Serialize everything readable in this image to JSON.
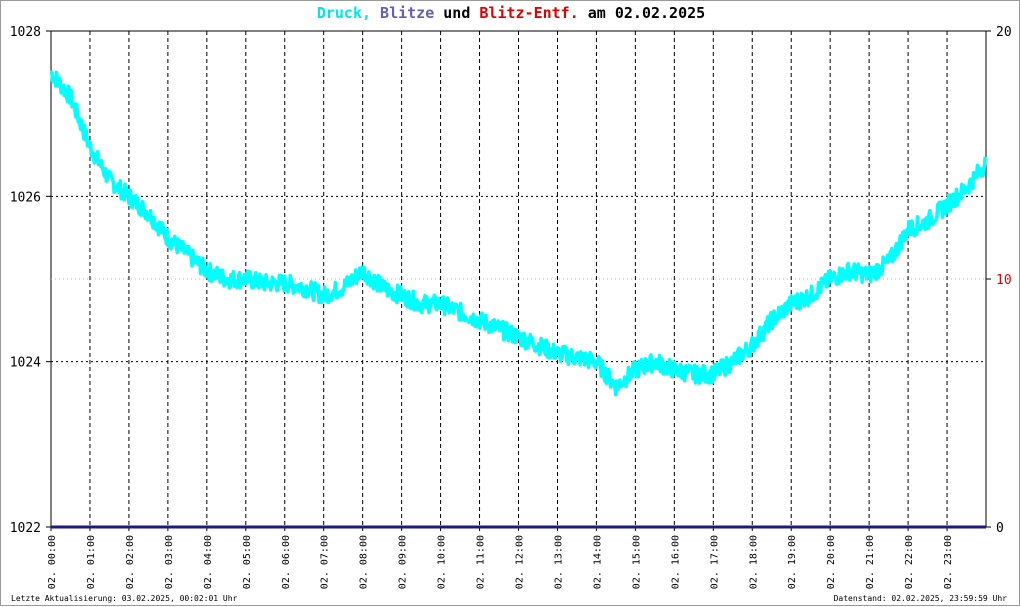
{
  "title": {
    "part1": "Druck,",
    "part2": "Blitze",
    "part3": "und",
    "part4": "Blitz-Entf.",
    "part5": "am 02.02.2025",
    "color1": "#00e5e5",
    "color2": "#6060c0",
    "color3": "#000000",
    "color4": "#e00000",
    "color5": "#000000"
  },
  "footer": {
    "left": "Letzte Aktualisierung: 03.02.2025, 00:02:01 Uhr",
    "right": "Datenstand: 02.02.2025, 23:59:59 Uhr"
  },
  "chart_data": {
    "type": "line",
    "title": "Druck, Blitze und Blitz-Entf. am 02.02.2025",
    "x_labels": [
      "02. 00:00",
      "02. 01:00",
      "02. 02:00",
      "02. 03:00",
      "02. 04:00",
      "02. 05:00",
      "02. 06:00",
      "02. 07:00",
      "02. 08:00",
      "02. 09:00",
      "02. 10:00",
      "02. 11:00",
      "02. 12:00",
      "02. 13:00",
      "02. 14:00",
      "02. 15:00",
      "02. 16:00",
      "02. 17:00",
      "02. 18:00",
      "02. 19:00",
      "02. 20:00",
      "02. 21:00",
      "02. 22:00",
      "02. 23:00"
    ],
    "y_left": {
      "ticks": [
        1022,
        1024,
        1026,
        1028
      ],
      "range": [
        1022,
        1028
      ]
    },
    "y_right": {
      "ticks": [
        0,
        10,
        20
      ],
      "range": [
        0,
        20
      ],
      "tick_color_10": "#e00000"
    },
    "grid": true,
    "series": [
      {
        "name": "Druck",
        "axis": "left",
        "color": "#00ffff",
        "x": [
          "00:00",
          "00:30",
          "01:00",
          "01:30",
          "02:00",
          "02:30",
          "03:00",
          "03:30",
          "04:00",
          "04:30",
          "05:00",
          "05:30",
          "06:00",
          "06:30",
          "07:00",
          "07:30",
          "08:00",
          "08:30",
          "09:00",
          "09:30",
          "10:00",
          "10:30",
          "11:00",
          "11:30",
          "12:00",
          "12:30",
          "13:00",
          "13:30",
          "14:00",
          "14:30",
          "15:00",
          "15:30",
          "16:00",
          "16:30",
          "17:00",
          "17:30",
          "18:00",
          "18:30",
          "19:00",
          "19:30",
          "20:00",
          "20:30",
          "21:00",
          "21:30",
          "22:00",
          "22:30",
          "23:00",
          "23:30",
          "23:59"
        ],
        "values": [
          1027.5,
          1027.2,
          1026.6,
          1026.2,
          1026.0,
          1025.8,
          1025.5,
          1025.3,
          1025.1,
          1025.0,
          1025.0,
          1024.95,
          1024.95,
          1024.9,
          1024.8,
          1024.9,
          1025.1,
          1024.9,
          1024.8,
          1024.7,
          1024.7,
          1024.6,
          1024.5,
          1024.4,
          1024.3,
          1024.2,
          1024.1,
          1024.05,
          1024.0,
          1023.7,
          1023.9,
          1024.0,
          1023.9,
          1023.85,
          1023.85,
          1024.0,
          1024.2,
          1024.5,
          1024.7,
          1024.8,
          1025.0,
          1025.1,
          1025.05,
          1025.2,
          1025.6,
          1025.7,
          1025.9,
          1026.1,
          1026.4
        ]
      },
      {
        "name": "Blitze",
        "axis": "right",
        "color": "#6060c0",
        "values": [
          0
        ]
      },
      {
        "name": "Blitz-Entf.",
        "axis": "right",
        "color": "#e00000",
        "values": [
          0
        ]
      }
    ]
  }
}
